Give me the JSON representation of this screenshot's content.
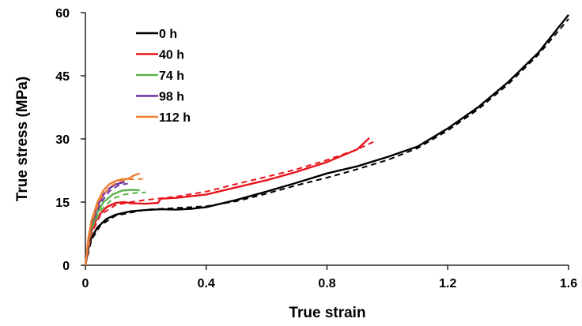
{
  "chart_data": {
    "type": "line",
    "xlabel": "True strain",
    "ylabel": "True stress (MPa)",
    "xlim": [
      0,
      1.6
    ],
    "ylim": [
      0,
      60
    ],
    "x_ticks": [
      "0",
      "0.4",
      "0.8",
      "1.2",
      "1.6"
    ],
    "y_ticks": [
      "0",
      "15",
      "30",
      "45",
      "60"
    ],
    "x_tick_values": [
      0,
      0.4,
      0.8,
      1.2,
      1.6
    ],
    "y_tick_values": [
      0,
      15,
      30,
      45,
      60
    ],
    "grid": false,
    "legend_position": "top-left",
    "series": [
      {
        "name": "0 h",
        "color": "#000000",
        "solid": [
          [
            0,
            0
          ],
          [
            0.01,
            4
          ],
          [
            0.02,
            6.5
          ],
          [
            0.04,
            9
          ],
          [
            0.07,
            11
          ],
          [
            0.1,
            12
          ],
          [
            0.15,
            12.8
          ],
          [
            0.2,
            13.1
          ],
          [
            0.25,
            13.3
          ],
          [
            0.3,
            13.2
          ],
          [
            0.35,
            13.4
          ],
          [
            0.4,
            13.8
          ],
          [
            0.5,
            15.5
          ],
          [
            0.6,
            17.5
          ],
          [
            0.7,
            19.6
          ],
          [
            0.8,
            21.8
          ],
          [
            0.9,
            23.5
          ],
          [
            1.0,
            25.7
          ],
          [
            1.1,
            28.2
          ],
          [
            1.2,
            32.5
          ],
          [
            1.3,
            37.5
          ],
          [
            1.4,
            43.5
          ],
          [
            1.5,
            50.5
          ],
          [
            1.6,
            59.5
          ]
        ],
        "dashed": [
          [
            0,
            0
          ],
          [
            0.02,
            6
          ],
          [
            0.05,
            9.5
          ],
          [
            0.1,
            11.8
          ],
          [
            0.2,
            13.2
          ],
          [
            0.3,
            13.6
          ],
          [
            0.4,
            14
          ],
          [
            0.5,
            15.2
          ],
          [
            0.6,
            17
          ],
          [
            0.7,
            19
          ],
          [
            0.8,
            20.8
          ],
          [
            0.9,
            22.8
          ],
          [
            1.0,
            25
          ],
          [
            1.1,
            27.8
          ],
          [
            1.2,
            32
          ],
          [
            1.3,
            37
          ],
          [
            1.4,
            43
          ],
          [
            1.5,
            50
          ],
          [
            1.6,
            58.5
          ]
        ]
      },
      {
        "name": "40 h",
        "color": "#e8141c",
        "solid": [
          [
            0,
            0
          ],
          [
            0.01,
            5
          ],
          [
            0.02,
            8
          ],
          [
            0.04,
            11.5
          ],
          [
            0.07,
            13.8
          ],
          [
            0.1,
            14.8
          ],
          [
            0.13,
            15
          ],
          [
            0.15,
            14.7
          ],
          [
            0.2,
            14.6
          ],
          [
            0.24,
            14.8
          ],
          [
            0.25,
            15.8
          ],
          [
            0.3,
            16
          ],
          [
            0.4,
            16.8
          ],
          [
            0.5,
            18.5
          ],
          [
            0.6,
            20.2
          ],
          [
            0.7,
            22.2
          ],
          [
            0.8,
            24.5
          ],
          [
            0.9,
            27.5
          ],
          [
            0.94,
            30.2
          ]
        ],
        "dashed": [
          [
            0,
            0
          ],
          [
            0.02,
            7.5
          ],
          [
            0.05,
            12
          ],
          [
            0.1,
            14.3
          ],
          [
            0.15,
            15
          ],
          [
            0.2,
            15.5
          ],
          [
            0.3,
            16.3
          ],
          [
            0.4,
            17.5
          ],
          [
            0.5,
            19.3
          ],
          [
            0.6,
            21
          ],
          [
            0.7,
            22.8
          ],
          [
            0.8,
            25
          ],
          [
            0.9,
            27.5
          ],
          [
            0.96,
            29.5
          ]
        ]
      },
      {
        "name": "74 h",
        "color": "#5db14b",
        "solid": [
          [
            0,
            0
          ],
          [
            0.01,
            5.5
          ],
          [
            0.02,
            9
          ],
          [
            0.04,
            12.5
          ],
          [
            0.06,
            15
          ],
          [
            0.09,
            16.8
          ],
          [
            0.12,
            17.7
          ],
          [
            0.15,
            17.9
          ],
          [
            0.18,
            17.8
          ]
        ],
        "dashed": [
          [
            0,
            0
          ],
          [
            0.02,
            8.5
          ],
          [
            0.05,
            13
          ],
          [
            0.09,
            15.8
          ],
          [
            0.13,
            16.8
          ],
          [
            0.17,
            17.2
          ],
          [
            0.2,
            17.3
          ]
        ]
      },
      {
        "name": "98 h",
        "color": "#7030a0",
        "solid": [
          [
            0,
            0
          ],
          [
            0.01,
            6
          ],
          [
            0.02,
            10
          ],
          [
            0.04,
            14
          ],
          [
            0.06,
            16.8
          ],
          [
            0.08,
            18.3
          ],
          [
            0.1,
            19.2
          ],
          [
            0.12,
            19.6
          ],
          [
            0.13,
            19.8
          ]
        ],
        "dashed": [
          [
            0,
            0
          ],
          [
            0.02,
            9.5
          ],
          [
            0.05,
            14.8
          ],
          [
            0.08,
            17.6
          ],
          [
            0.11,
            19
          ],
          [
            0.14,
            19.4
          ]
        ]
      },
      {
        "name": "112 h",
        "color": "#ed7d31",
        "solid": [
          [
            0,
            0
          ],
          [
            0.01,
            6.5
          ],
          [
            0.02,
            10.5
          ],
          [
            0.04,
            15
          ],
          [
            0.06,
            17.8
          ],
          [
            0.08,
            19.3
          ],
          [
            0.1,
            20
          ],
          [
            0.12,
            20.4
          ],
          [
            0.14,
            20.5
          ],
          [
            0.16,
            21.3
          ],
          [
            0.18,
            21.8
          ]
        ],
        "dashed": [
          [
            0,
            0
          ],
          [
            0.02,
            10
          ],
          [
            0.05,
            15.8
          ],
          [
            0.08,
            18.6
          ],
          [
            0.11,
            19.9
          ],
          [
            0.14,
            20.4
          ],
          [
            0.17,
            20.5
          ],
          [
            0.19,
            20.5
          ]
        ]
      }
    ]
  }
}
